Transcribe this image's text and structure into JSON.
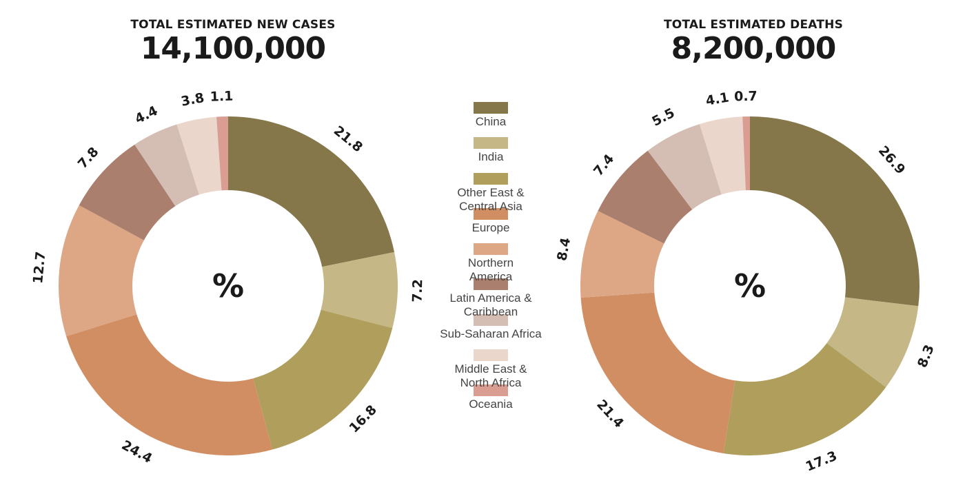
{
  "colors": {
    "China": "#85774a",
    "India": "#c5b886",
    "Other East & Central Asia": "#b09e5c",
    "Europe": "#d28e63",
    "Northern America": "#dda685",
    "Latin America & Caribbean": "#ab7f6e",
    "Sub-Saharan Africa": "#d4bdb3",
    "Middle East & North Africa": "#ead6cb",
    "Oceania": "#d99d92"
  },
  "legend": [
    {
      "key": "China",
      "label": "China"
    },
    {
      "key": "India",
      "label": "India"
    },
    {
      "key": "Other East & Central Asia",
      "label": "Other East &\nCentral Asia"
    },
    {
      "key": "Europe",
      "label": "Europe"
    },
    {
      "key": "Northern America",
      "label": "Northern\nAmerica"
    },
    {
      "key": "Latin America & Caribbean",
      "label": "Latin America &\nCaribbean"
    },
    {
      "key": "Sub-Saharan Africa",
      "label": "Sub-Saharan Africa"
    },
    {
      "key": "Middle East & North Africa",
      "label": "Middle East &\nNorth Africa"
    },
    {
      "key": "Oceania",
      "label": "Oceania"
    }
  ],
  "chart_data": [
    {
      "type": "pie",
      "title": "TOTAL ESTIMATED NEW CASES",
      "total": "14,100,000",
      "center_label": "%",
      "categories": [
        "China",
        "India",
        "Other East & Central Asia",
        "Europe",
        "Northern America",
        "Latin America & Caribbean",
        "Sub-Saharan Africa",
        "Middle East & North Africa",
        "Oceania"
      ],
      "values": [
        21.8,
        7.2,
        16.8,
        24.4,
        12.7,
        7.8,
        4.4,
        3.8,
        1.1
      ]
    },
    {
      "type": "pie",
      "title": "TOTAL ESTIMATED DEATHS",
      "total": "8,200,000",
      "center_label": "%",
      "categories": [
        "China",
        "India",
        "Other East & Central Asia",
        "Europe",
        "Northern America",
        "Latin America & Caribbean",
        "Sub-Saharan Africa",
        "Middle East & North Africa",
        "Oceania"
      ],
      "values": [
        26.9,
        8.3,
        17.3,
        21.4,
        8.4,
        7.4,
        5.5,
        4.1,
        0.7
      ]
    }
  ]
}
